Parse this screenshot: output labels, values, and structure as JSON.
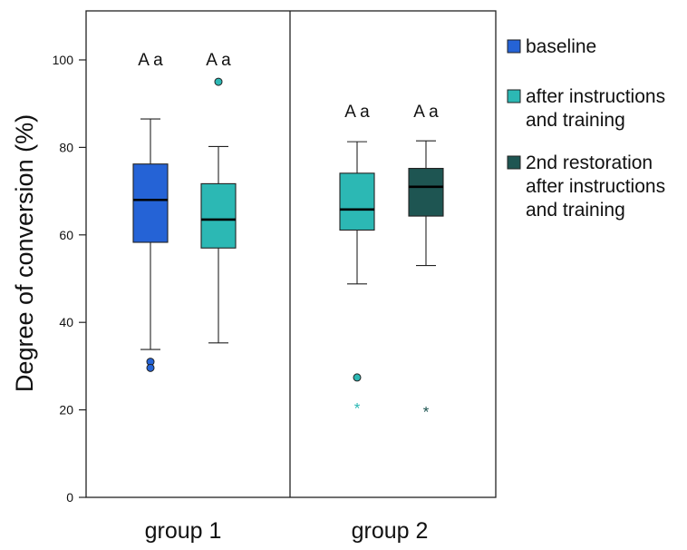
{
  "chart_data": {
    "type": "box",
    "ylabel": "Degree of conversion (%)",
    "ylim": [
      0,
      100
    ],
    "yticks": [
      0,
      20,
      40,
      60,
      80,
      100
    ],
    "groups": [
      "group 1",
      "group 2"
    ],
    "legend": [
      {
        "lines": [
          "baseline"
        ],
        "color": "#2563d6"
      },
      {
        "lines": [
          "after instructions",
          "and training"
        ],
        "color": "#2cb8b4"
      },
      {
        "lines": [
          "2nd restoration",
          "after instructions",
          "and training"
        ],
        "color": "#1e5552"
      }
    ],
    "boxes": [
      {
        "group": 0,
        "position": 0,
        "color": "#2563d6",
        "whisker_low": 33.8,
        "q1": 58.3,
        "median": 68.0,
        "q3": 76.2,
        "whisker_high": 86.5,
        "outliers": [
          {
            "value": 31.0,
            "symbol": "circle"
          },
          {
            "value": 29.6,
            "symbol": "circle"
          }
        ],
        "annotation": "A a"
      },
      {
        "group": 0,
        "position": 1,
        "color": "#2cb8b4",
        "whisker_low": 35.3,
        "q1": 57.0,
        "median": 63.5,
        "q3": 71.7,
        "whisker_high": 80.2,
        "outliers": [
          {
            "value": 95.0,
            "symbol": "circle"
          }
        ],
        "annotation": "A a"
      },
      {
        "group": 1,
        "position": 0,
        "color": "#2cb8b4",
        "whisker_low": 48.8,
        "q1": 61.1,
        "median": 65.8,
        "q3": 74.1,
        "whisker_high": 81.3,
        "outliers": [
          {
            "value": 27.4,
            "symbol": "circle"
          },
          {
            "value": 20.6,
            "symbol": "star"
          }
        ],
        "annotation": "A a"
      },
      {
        "group": 1,
        "position": 1,
        "color": "#1e5552",
        "whisker_low": 53.0,
        "q1": 64.3,
        "median": 71.0,
        "q3": 75.2,
        "whisker_high": 81.5,
        "outliers": [
          {
            "value": 19.8,
            "symbol": "star"
          }
        ],
        "annotation": "A a"
      }
    ]
  }
}
